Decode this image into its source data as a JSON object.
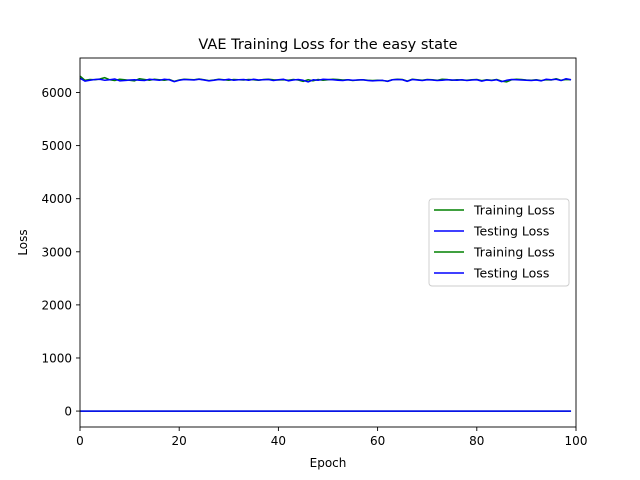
{
  "chart_data": {
    "type": "line",
    "title": "VAE Training Loss for the easy state",
    "xlabel": "Epoch",
    "ylabel": "Loss",
    "xlim": [
      0,
      100
    ],
    "ylim": [
      -300,
      6650
    ],
    "xticks": [
      0,
      20,
      40,
      60,
      80,
      100
    ],
    "yticks": [
      0,
      1000,
      2000,
      3000,
      4000,
      5000,
      6000
    ],
    "grid": false,
    "legend_position": "center-right",
    "x": [
      0,
      1,
      2,
      3,
      4,
      5,
      6,
      7,
      8,
      9,
      10,
      11,
      12,
      13,
      14,
      15,
      16,
      17,
      18,
      19,
      20,
      21,
      22,
      23,
      24,
      25,
      26,
      27,
      28,
      29,
      30,
      31,
      32,
      33,
      34,
      35,
      36,
      37,
      38,
      39,
      40,
      41,
      42,
      43,
      44,
      45,
      46,
      47,
      48,
      49,
      50,
      51,
      52,
      53,
      54,
      55,
      56,
      57,
      58,
      59,
      60,
      61,
      62,
      63,
      64,
      65,
      66,
      67,
      68,
      69,
      70,
      71,
      72,
      73,
      74,
      75,
      76,
      77,
      78,
      79,
      80,
      81,
      82,
      83,
      84,
      85,
      86,
      87,
      88,
      89,
      90,
      91,
      92,
      93,
      94,
      95,
      96,
      97,
      98,
      99
    ],
    "series": [
      {
        "name": "Training Loss",
        "color": "#008000",
        "values": [
          6310,
          6230,
          6245,
          6240,
          6255,
          6280,
          6240,
          6225,
          6250,
          6240,
          6230,
          6220,
          6260,
          6245,
          6230,
          6250,
          6240,
          6230,
          6245,
          6210,
          6235,
          6250,
          6245,
          6240,
          6255,
          6240,
          6225,
          6235,
          6250,
          6240,
          6230,
          6245,
          6240,
          6235,
          6245,
          6240,
          6230,
          6245,
          6250,
          6240,
          6235,
          6240,
          6230,
          6245,
          6235,
          6210,
          6240,
          6220,
          6245,
          6230,
          6240,
          6250,
          6245,
          6235,
          6240,
          6225,
          6235,
          6240,
          6230,
          6225,
          6230,
          6225,
          6215,
          6240,
          6250,
          6245,
          6215,
          6250,
          6240,
          6230,
          6245,
          6240,
          6230,
          6250,
          6245,
          6230,
          6240,
          6235,
          6230,
          6240,
          6245,
          6225,
          6240,
          6230,
          6245,
          6215,
          6200,
          6240,
          6250,
          6245,
          6235,
          6230,
          6240,
          6225,
          6240,
          6235,
          6260,
          6230,
          6245,
          6240
        ]
      },
      {
        "name": "Testing Loss",
        "color": "#0000ff",
        "values": [
          6270,
          6215,
          6230,
          6245,
          6250,
          6230,
          6240,
          6255,
          6220,
          6225,
          6235,
          6240,
          6230,
          6225,
          6250,
          6240,
          6230,
          6250,
          6240,
          6205,
          6230,
          6245,
          6240,
          6235,
          6250,
          6235,
          6220,
          6230,
          6245,
          6235,
          6250,
          6230,
          6240,
          6245,
          6230,
          6250,
          6235,
          6240,
          6245,
          6225,
          6240,
          6250,
          6220,
          6235,
          6245,
          6230,
          6200,
          6240,
          6230,
          6250,
          6245,
          6240,
          6230,
          6225,
          6240,
          6230,
          6235,
          6240,
          6225,
          6220,
          6225,
          6230,
          6210,
          6240,
          6245,
          6240,
          6210,
          6245,
          6235,
          6225,
          6240,
          6235,
          6225,
          6230,
          6240,
          6235,
          6230,
          6240,
          6225,
          6235,
          6240,
          6215,
          6235,
          6225,
          6240,
          6205,
          6230,
          6245,
          6240,
          6235,
          6230,
          6225,
          6235,
          6220,
          6250,
          6240,
          6250,
          6225,
          6260,
          6240
        ]
      },
      {
        "name": "Training Loss",
        "color": "#008000",
        "values": [
          0,
          0,
          0,
          0,
          0,
          0,
          0,
          0,
          0,
          0,
          0,
          0,
          0,
          0,
          0,
          0,
          0,
          0,
          0,
          0,
          0,
          0,
          0,
          0,
          0,
          0,
          0,
          0,
          0,
          0,
          0,
          0,
          0,
          0,
          0,
          0,
          0,
          0,
          0,
          0,
          0,
          0,
          0,
          0,
          0,
          0,
          0,
          0,
          0,
          0,
          0,
          0,
          0,
          0,
          0,
          0,
          0,
          0,
          0,
          0,
          0,
          0,
          0,
          0,
          0,
          0,
          0,
          0,
          0,
          0,
          0,
          0,
          0,
          0,
          0,
          0,
          0,
          0,
          0,
          0,
          0,
          0,
          0,
          0,
          0,
          0,
          0,
          0,
          0,
          0,
          0,
          0,
          0,
          0,
          0,
          0,
          0,
          0,
          0,
          0
        ]
      },
      {
        "name": "Testing Loss",
        "color": "#0000ff",
        "values": [
          0,
          0,
          0,
          0,
          0,
          0,
          0,
          0,
          0,
          0,
          0,
          0,
          0,
          0,
          0,
          0,
          0,
          0,
          0,
          0,
          0,
          0,
          0,
          0,
          0,
          0,
          0,
          0,
          0,
          0,
          0,
          0,
          0,
          0,
          0,
          0,
          0,
          0,
          0,
          0,
          0,
          0,
          0,
          0,
          0,
          0,
          0,
          0,
          0,
          0,
          0,
          0,
          0,
          0,
          0,
          0,
          0,
          0,
          0,
          0,
          0,
          0,
          0,
          0,
          0,
          0,
          0,
          0,
          0,
          0,
          0,
          0,
          0,
          0,
          0,
          0,
          0,
          0,
          0,
          0,
          0,
          0,
          0,
          0,
          0,
          0,
          0,
          0,
          0,
          0,
          0,
          0,
          0,
          0,
          0,
          0,
          0,
          0,
          0,
          0
        ]
      }
    ]
  }
}
